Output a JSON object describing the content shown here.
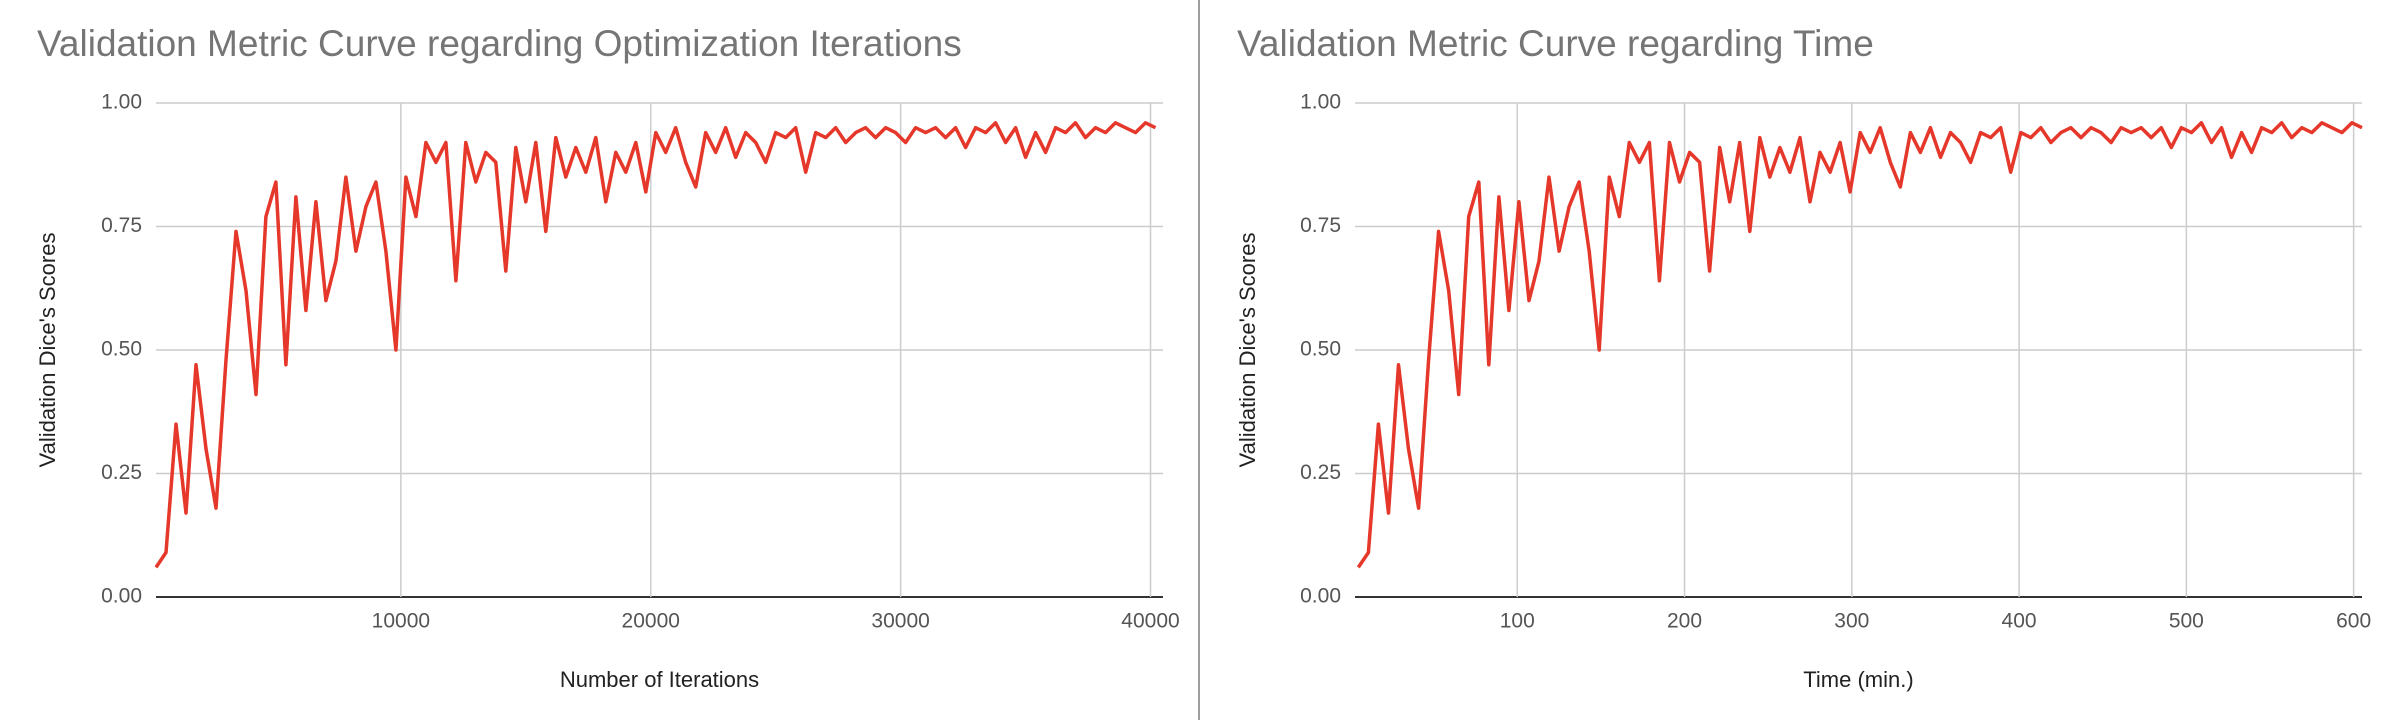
{
  "chart_data": [
    {
      "type": "line",
      "title": "Validation Metric Curve regarding Optimization Iterations",
      "x_label": "Number of Iterations",
      "y_label": "Validation Dice's Scores",
      "color": "#e5372a",
      "grid": true,
      "x": [
        200,
        600,
        1000,
        1400,
        1800,
        2200,
        2600,
        3000,
        3400,
        3800,
        4200,
        4600,
        5000,
        5400,
        5800,
        6200,
        6600,
        7000,
        7400,
        7800,
        8200,
        8600,
        9000,
        9400,
        9800,
        10200,
        10600,
        11000,
        11400,
        11800,
        12200,
        12600,
        13000,
        13400,
        13800,
        14200,
        14600,
        15000,
        15400,
        15800,
        16200,
        16600,
        17000,
        17400,
        17800,
        18200,
        18600,
        19000,
        19400,
        19800,
        20200,
        20600,
        21000,
        21400,
        21800,
        22200,
        22600,
        23000,
        23400,
        23800,
        24200,
        24600,
        25000,
        25400,
        25800,
        26200,
        26600,
        27000,
        27400,
        27800,
        28200,
        28600,
        29000,
        29400,
        29800,
        30200,
        30600,
        31000,
        31400,
        31800,
        32200,
        32600,
        33000,
        33400,
        33800,
        34200,
        34600,
        35000,
        35400,
        35800,
        36200,
        36600,
        37000,
        37400,
        37800,
        38200,
        38600,
        39000,
        39400,
        39800,
        40200
      ],
      "values": [
        0.06,
        0.09,
        0.35,
        0.17,
        0.47,
        0.3,
        0.18,
        0.48,
        0.74,
        0.62,
        0.41,
        0.77,
        0.84,
        0.47,
        0.81,
        0.58,
        0.8,
        0.6,
        0.68,
        0.85,
        0.7,
        0.79,
        0.84,
        0.7,
        0.5,
        0.85,
        0.77,
        0.92,
        0.88,
        0.92,
        0.64,
        0.92,
        0.84,
        0.9,
        0.88,
        0.66,
        0.91,
        0.8,
        0.92,
        0.74,
        0.93,
        0.85,
        0.91,
        0.86,
        0.93,
        0.8,
        0.9,
        0.86,
        0.92,
        0.82,
        0.94,
        0.9,
        0.95,
        0.88,
        0.83,
        0.94,
        0.9,
        0.95,
        0.89,
        0.94,
        0.92,
        0.88,
        0.94,
        0.93,
        0.95,
        0.86,
        0.94,
        0.93,
        0.95,
        0.92,
        0.94,
        0.95,
        0.93,
        0.95,
        0.94,
        0.92,
        0.95,
        0.94,
        0.95,
        0.93,
        0.95,
        0.91,
        0.95,
        0.94,
        0.96,
        0.92,
        0.95,
        0.89,
        0.94,
        0.9,
        0.95,
        0.94,
        0.96,
        0.93,
        0.95,
        0.94,
        0.96,
        0.95,
        0.94,
        0.96,
        0.95
      ],
      "xlim": [
        200,
        40500
      ],
      "xticks": [
        10000,
        20000,
        30000,
        40000
      ],
      "ylim": [
        0,
        1
      ],
      "yticks": [
        {
          "value": 0,
          "label": "0.00"
        },
        {
          "value": 0.25,
          "label": "0.25"
        },
        {
          "value": 0.5,
          "label": "0.50"
        },
        {
          "value": 0.75,
          "label": "0.75"
        },
        {
          "value": 1,
          "label": "1.00"
        }
      ]
    },
    {
      "type": "line",
      "title": "Validation Metric Curve regarding Time",
      "x_label": "Time (min.)",
      "y_label": "Validation Dice's Scores",
      "color": "#e5372a",
      "grid": true,
      "x": [
        5,
        11,
        17,
        23,
        29,
        35,
        41,
        47,
        53,
        59,
        65,
        71,
        77,
        83,
        89,
        95,
        101,
        107,
        113,
        119,
        125,
        131,
        137,
        143,
        149,
        155,
        161,
        167,
        173,
        179,
        185,
        191,
        197,
        203,
        209,
        215,
        221,
        227,
        233,
        239,
        245,
        251,
        257,
        263,
        269,
        275,
        281,
        287,
        293,
        299,
        305,
        311,
        317,
        323,
        329,
        335,
        341,
        347,
        353,
        359,
        365,
        371,
        377,
        383,
        389,
        395,
        401,
        407,
        413,
        419,
        425,
        431,
        437,
        443,
        449,
        455,
        461,
        467,
        473,
        479,
        485,
        491,
        497,
        503,
        509,
        515,
        521,
        527,
        533,
        539,
        545,
        551,
        557,
        563,
        569,
        575,
        581,
        587,
        593,
        599,
        605
      ],
      "values": [
        0.06,
        0.09,
        0.35,
        0.17,
        0.47,
        0.3,
        0.18,
        0.48,
        0.74,
        0.62,
        0.41,
        0.77,
        0.84,
        0.47,
        0.81,
        0.58,
        0.8,
        0.6,
        0.68,
        0.85,
        0.7,
        0.79,
        0.84,
        0.7,
        0.5,
        0.85,
        0.77,
        0.92,
        0.88,
        0.92,
        0.64,
        0.92,
        0.84,
        0.9,
        0.88,
        0.66,
        0.91,
        0.8,
        0.92,
        0.74,
        0.93,
        0.85,
        0.91,
        0.86,
        0.93,
        0.8,
        0.9,
        0.86,
        0.92,
        0.82,
        0.94,
        0.9,
        0.95,
        0.88,
        0.83,
        0.94,
        0.9,
        0.95,
        0.89,
        0.94,
        0.92,
        0.88,
        0.94,
        0.93,
        0.95,
        0.86,
        0.94,
        0.93,
        0.95,
        0.92,
        0.94,
        0.95,
        0.93,
        0.95,
        0.94,
        0.92,
        0.95,
        0.94,
        0.95,
        0.93,
        0.95,
        0.91,
        0.95,
        0.94,
        0.96,
        0.92,
        0.95,
        0.89,
        0.94,
        0.9,
        0.95,
        0.94,
        0.96,
        0.93,
        0.95,
        0.94,
        0.96,
        0.95,
        0.94,
        0.96,
        0.95
      ],
      "xlim": [
        3,
        605
      ],
      "xticks": [
        100,
        200,
        300,
        400,
        500,
        600
      ],
      "ylim": [
        0,
        1
      ],
      "yticks": [
        {
          "value": 0,
          "label": "0.00"
        },
        {
          "value": 0.25,
          "label": "0.25"
        },
        {
          "value": 0.5,
          "label": "0.50"
        },
        {
          "value": 0.75,
          "label": "0.75"
        },
        {
          "value": 1,
          "label": "1.00"
        }
      ]
    }
  ]
}
